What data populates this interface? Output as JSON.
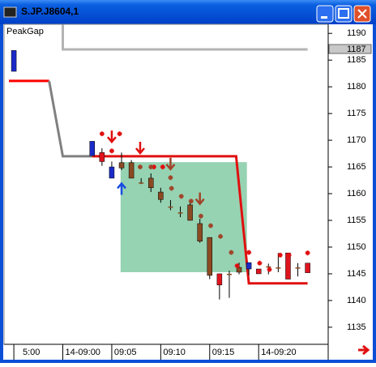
{
  "window": {
    "title": "S.JP.J8604,1"
  },
  "chart_data": {
    "type": "candlestick",
    "indicator_label": "PeakGap",
    "xlim": [
      -6,
      27.1
    ],
    "xticks": [
      {
        "value": -5,
        "label": "5:00"
      },
      {
        "value": 0,
        "label": "14-09:00"
      },
      {
        "value": 5,
        "label": "09:05"
      },
      {
        "value": 10,
        "label": "09:10"
      },
      {
        "value": 15,
        "label": "09:15"
      },
      {
        "value": 20,
        "label": "14-09:20"
      }
    ],
    "ylim": [
      1131.8,
      1191.7
    ],
    "yticks": [
      1135,
      1140,
      1145,
      1150,
      1155,
      1160,
      1165,
      1170,
      1175,
      1180,
      1185,
      1190
    ],
    "last_price": 1187,
    "x": [
      -5,
      3,
      4,
      5,
      6,
      7,
      8,
      9,
      10,
      11,
      12,
      13,
      14,
      15,
      16,
      17,
      18,
      19,
      20,
      21,
      22,
      23,
      24,
      25
    ],
    "open": [
      1186.8,
      1169.8,
      1166,
      1165,
      1164.8,
      1165.8,
      1162.1,
      1162.9,
      1160.3,
      1157.6,
      1156.5,
      1157.9,
      1154.4,
      1151.8,
      1145,
      1145,
      1146.2,
      1147.1,
      1145,
      1146.4,
      1146.2,
      1144,
      1146.2,
      1145.2
    ],
    "high": [
      1186.8,
      1169.8,
      1168.5,
      1166,
      1167.7,
      1166.3,
      1162.9,
      1163.8,
      1161.1,
      1158.8,
      1157.6,
      1158.6,
      1155.3,
      1151.8,
      1145,
      1145.6,
      1147.1,
      1147.1,
      1145.9,
      1146.9,
      1148.9,
      1148.9,
      1147,
      1147
    ],
    "low": [
      1182.9,
      1167.1,
      1165.2,
      1162.9,
      1164.4,
      1162.9,
      1161.8,
      1160.3,
      1158.3,
      1156.9,
      1155.6,
      1155,
      1150.8,
      1144,
      1140.2,
      1140.5,
      1144.9,
      1144.7,
      1145,
      1144.9,
      1145.3,
      1144,
      1144.5,
      1145.2
    ],
    "close": [
      1182.9,
      1167.1,
      1167.7,
      1162.9,
      1165.8,
      1162.9,
      1162.1,
      1161.1,
      1158.9,
      1157.6,
      1156.5,
      1155,
      1151.1,
      1144.7,
      1142.9,
      1145,
      1145.3,
      1145.9,
      1145.9,
      1146.4,
      1146.2,
      1148.9,
      1146.2,
      1147
    ],
    "colors": [
      "#1a2bc8",
      "#1a2bc8",
      "#e0141e",
      "#1a2bc8",
      "#8b4a22",
      "#8b4a22",
      "#8b4a22",
      "#8b4a22",
      "#8b4a22",
      "#8b4a22",
      "#8b4a22",
      "#8b4a22",
      "#8b4a22",
      "#8b4a22",
      "#e0141e",
      "#8b4a22",
      "#8b4a22",
      "#1a2bc8",
      "#e0141e",
      "#8b4a22",
      "#8b4a22",
      "#e0141e",
      "#8b4a22",
      "#e0141e"
    ],
    "lines": [
      {
        "color": "#ff0000",
        "x": [
          -5.5,
          -1.4
        ],
        "y": [
          1181.1,
          1181.1
        ]
      },
      {
        "color": "#808080",
        "x": [
          -1.4,
          0,
          3
        ],
        "y": [
          1181.1,
          1167,
          1167
        ]
      },
      {
        "color": "#e01010",
        "x": [
          3,
          17.7,
          19,
          25
        ],
        "y": [
          1167,
          1167,
          1143.2,
          1143.2
        ]
      },
      {
        "color": "#b4b4b4",
        "x": [
          0,
          0,
          25
        ],
        "y": [
          1191.7,
          1187,
          1187
        ]
      }
    ],
    "zone": {
      "color": "#2ea866",
      "x": [
        5.9,
        18.8
      ],
      "y": [
        1145.3,
        1165.9
      ]
    },
    "markers": [
      {
        "shape": "star",
        "color": "#e01010",
        "x": [
          4,
          5.8,
          5,
          9.3,
          10.2,
          17.8,
          19,
          20.1,
          21.1,
          22.2,
          23.1,
          25
        ],
        "y": [
          1171.2,
          1171.2,
          1168,
          1165,
          1165,
          1146.5,
          1149,
          1147,
          1145.8,
          1148.5,
          1148.5,
          1148.9
        ]
      },
      {
        "shape": "star",
        "color": "#a0442a",
        "x": [
          7.9,
          9,
          11,
          11.1,
          12.1,
          13.1,
          14.1,
          15.1,
          16.1,
          17.2
        ],
        "y": [
          1165,
          1165,
          1163,
          1161,
          1159.5,
          1158.6,
          1155.8,
          1154,
          1152,
          1149
        ]
      },
      {
        "shape": "arrow-down",
        "color": "#e01010",
        "x": [
          5,
          7.9
        ],
        "y": [
          1170.6,
          1168.5
        ]
      },
      {
        "shape": "arrow-down",
        "color": "#a0442a",
        "x": [
          11,
          14
        ],
        "y": [
          1165.5,
          1159
        ]
      },
      {
        "shape": "arrow-up",
        "color": "#1a4ee0",
        "x": [
          6
        ],
        "y": [
          1161
        ]
      }
    ]
  }
}
